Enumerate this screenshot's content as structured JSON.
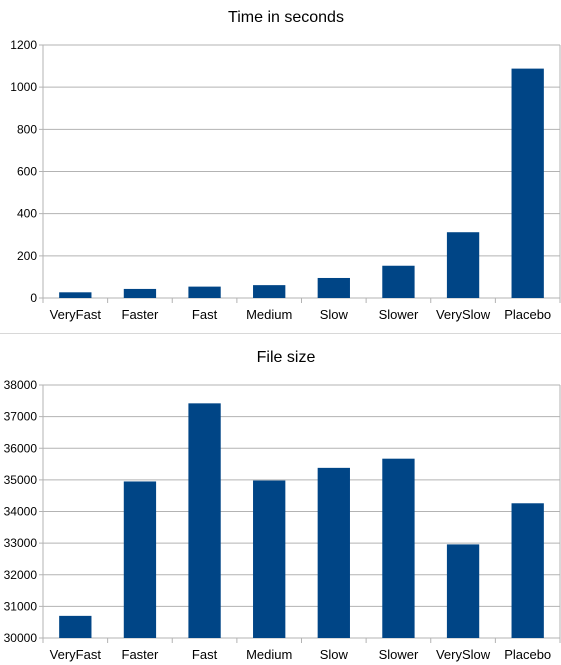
{
  "chart_data": [
    {
      "type": "bar",
      "title": "Time in seconds",
      "xlabel": "",
      "ylabel": "",
      "categories": [
        "VeryFast",
        "Faster",
        "Fast",
        "Medium",
        "Slow",
        "Slower",
        "VerySlow",
        "Placebo"
      ],
      "values": [
        27,
        43,
        54,
        61,
        95,
        153,
        312,
        1088
      ],
      "ylim": [
        0,
        1200
      ],
      "yticks": [
        0,
        200,
        400,
        600,
        800,
        1000,
        1200
      ],
      "grid": true,
      "legend": "none",
      "bar_color": "#004586"
    },
    {
      "type": "bar",
      "title": "File size",
      "xlabel": "",
      "ylabel": "",
      "categories": [
        "VeryFast",
        "Faster",
        "Fast",
        "Medium",
        "Slow",
        "Slower",
        "VerySlow",
        "Placebo"
      ],
      "values": [
        30700,
        34950,
        37420,
        34980,
        35380,
        35670,
        32960,
        34260
      ],
      "ylim": [
        30000,
        38000
      ],
      "yticks": [
        30000,
        31000,
        32000,
        33000,
        34000,
        35000,
        36000,
        37000,
        38000
      ],
      "grid": true,
      "legend": "none",
      "bar_color": "#004586"
    }
  ]
}
